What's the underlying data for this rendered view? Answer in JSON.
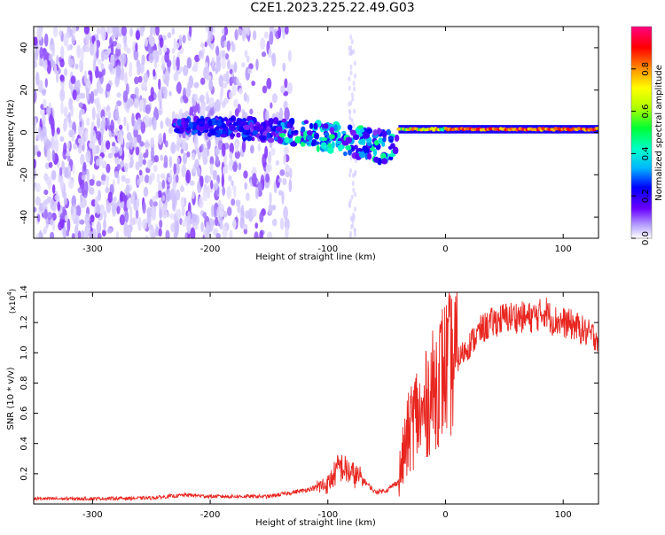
{
  "page": {
    "title": "C2E1.2023.225.22.49.G03"
  },
  "colors": {
    "snr_line": "#e8251f",
    "axes": "#000000"
  },
  "chart_data": [
    {
      "type": "heatmap",
      "id": "spectrogram",
      "xlabel": "Height of straight line (km)",
      "ylabel": "Frequency (Hz)",
      "xlim": [
        -350,
        130
      ],
      "ylim": [
        -50,
        50
      ],
      "x_ticks": [
        -300,
        -200,
        -100,
        0,
        100
      ],
      "y_ticks": [
        -40,
        -20,
        0,
        20,
        40
      ],
      "colorbar": {
        "label": "Normalized spectral amplitude",
        "range": [
          0,
          1
        ],
        "ticks": [
          "0.0",
          "0.2",
          "0.4",
          "0.6",
          "0.8"
        ],
        "colormap": [
          "#ffffff",
          "#b7a4ff",
          "#6a00ff",
          "#0000ff",
          "#00b4ff",
          "#00ffcc",
          "#00ff33",
          "#b4ff00",
          "#ffff00",
          "#ff9000",
          "#ff0000",
          "#ff0080"
        ]
      },
      "features": [
        {
          "name": "diffuse noise",
          "x_range": [
            -350,
            -150
          ],
          "f_range": [
            -50,
            50
          ],
          "level": 0.1
        },
        {
          "name": "descending signal",
          "x_range": [
            -230,
            -40
          ],
          "f_start": 3,
          "f_end": -8,
          "level": 0.3
        },
        {
          "name": "steady carrier",
          "x_range": [
            -40,
            130
          ],
          "f": 1.5,
          "level": 0.85
        }
      ]
    },
    {
      "type": "line",
      "id": "snr",
      "xlabel": "Height of straight line (km)",
      "ylabel": "SNR (10 * v/v)",
      "y_multiplier": "(x10",
      "y_multiplier_exp": "4",
      "y_multiplier_close": ")",
      "xlim": [
        -350,
        130
      ],
      "ylim": [
        0,
        14000
      ],
      "x_ticks": [
        -300,
        -200,
        -100,
        0,
        100
      ],
      "y_tick_labels": [
        "0.2",
        "0.4",
        "0.6",
        "0.8",
        "1.0",
        "1.2",
        "1.4"
      ],
      "y_tick_values": [
        2000,
        4000,
        6000,
        8000,
        10000,
        12000,
        14000
      ],
      "series": [
        {
          "x": [
            -350,
            -300,
            -250,
            -220,
            -200,
            -150,
            -120,
            -100,
            -90,
            -80,
            -70,
            -60,
            -50,
            -40,
            -35,
            -30,
            -25,
            -20,
            -15,
            -10,
            -5,
            0,
            10,
            20,
            30,
            40,
            50,
            60,
            70,
            80,
            85,
            90,
            100,
            110,
            120,
            130
          ],
          "y": [
            350,
            350,
            400,
            600,
            500,
            500,
            900,
            1300,
            2500,
            2000,
            1600,
            800,
            900,
            1500,
            3500,
            5000,
            6000,
            5500,
            7000,
            7500,
            8500,
            9000,
            9500,
            10500,
            11500,
            12000,
            12300,
            12400,
            12300,
            12500,
            12800,
            12200,
            12000,
            11800,
            11300,
            11000
          ]
        }
      ]
    }
  ]
}
